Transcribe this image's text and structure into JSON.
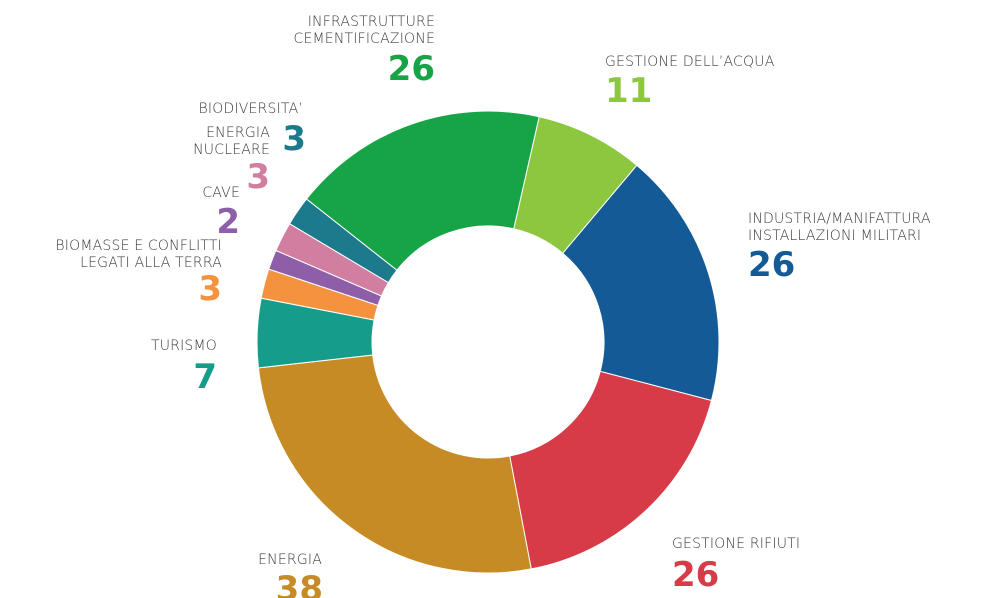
{
  "chart_data": {
    "type": "donut",
    "categories": [
      "GESTIONE DELL’ACQUA",
      "INDUSTRIA/MANIFATTURA\nINSTALLAZIONI MILITARI",
      "GESTIONE RIFIUTI",
      "ENERGIA",
      "TURISMO",
      "BIOMASSE E CONFLITTI\nLEGATI ALLA TERRA",
      "CAVE",
      "ENERGIA\nNUCLEARE",
      "BIODIVERSITA’",
      "INFRASTRUTTURE\nCEMENTIFICAZIONE"
    ],
    "values": [
      11,
      26,
      26,
      38,
      7,
      3,
      2,
      3,
      3,
      26
    ],
    "colors": [
      "#8dc63f",
      "#135a96",
      "#d63b47",
      "#c68b24",
      "#159c8a",
      "#f5923e",
      "#8e5fa8",
      "#d27ea0",
      "#1d7a8c",
      "#17a447"
    ]
  }
}
